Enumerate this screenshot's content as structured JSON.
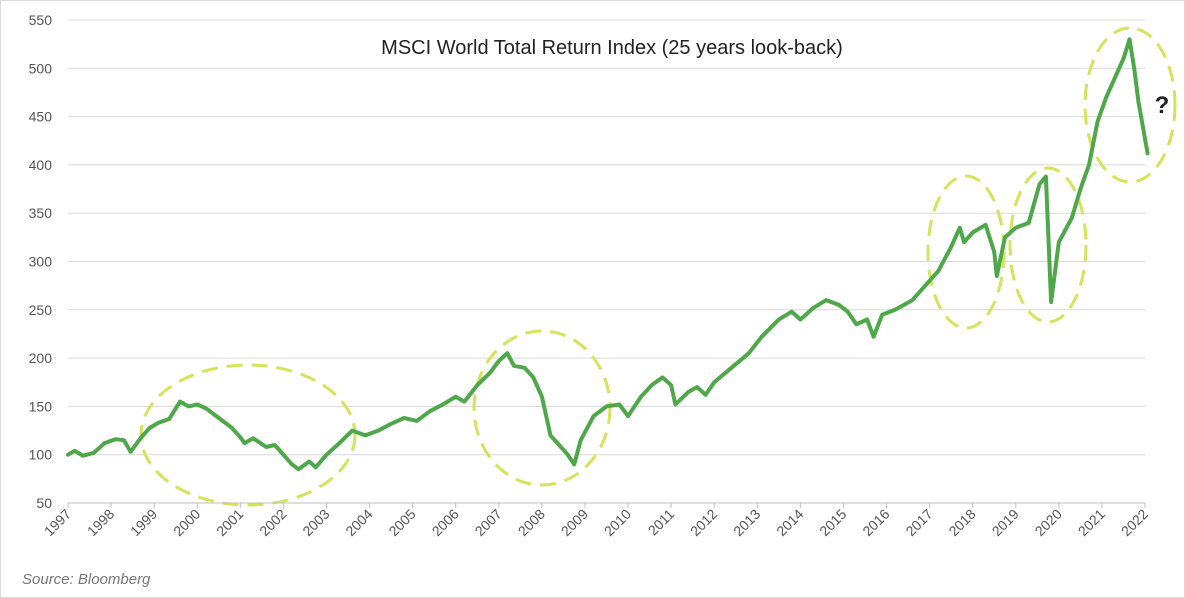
{
  "chart_data": {
    "type": "line",
    "title": "MSCI World Total Return Index (25 years look-back)",
    "source": "Source: Bloomberg",
    "annotation": "?",
    "xlim": [
      1997,
      2022
    ],
    "xticks": [
      1997,
      1998,
      1999,
      2000,
      2001,
      2002,
      2003,
      2004,
      2005,
      2006,
      2007,
      2008,
      2009,
      2010,
      2011,
      2012,
      2013,
      2014,
      2015,
      2016,
      2017,
      2018,
      2019,
      2020,
      2021,
      2022
    ],
    "ylim": [
      50,
      550
    ],
    "yticks": [
      50,
      100,
      150,
      200,
      250,
      300,
      350,
      400,
      450,
      500,
      550
    ],
    "grid": true,
    "series": [
      {
        "name": "MSCI World Total Return Index",
        "color": "#4ea84a",
        "x": [
          1997.0,
          1997.15,
          1997.35,
          1997.6,
          1997.85,
          1998.1,
          1998.3,
          1998.45,
          1998.7,
          1998.9,
          1999.1,
          1999.35,
          1999.6,
          1999.8,
          2000.0,
          2000.2,
          2000.5,
          2000.8,
          2001.0,
          2001.1,
          2001.3,
          2001.6,
          2001.8,
          2002.0,
          2002.2,
          2002.35,
          2002.6,
          2002.75,
          2003.0,
          2003.3,
          2003.6,
          2003.9,
          2004.2,
          2004.5,
          2004.8,
          2005.1,
          2005.4,
          2005.7,
          2006.0,
          2006.2,
          2006.5,
          2006.8,
          2007.0,
          2007.2,
          2007.35,
          2007.6,
          2007.8,
          2008.0,
          2008.2,
          2008.4,
          2008.6,
          2008.75,
          2008.9,
          2009.2,
          2009.5,
          2009.8,
          2010.0,
          2010.3,
          2010.55,
          2010.8,
          2011.0,
          2011.1,
          2011.4,
          2011.6,
          2011.8,
          2012.0,
          2012.4,
          2012.8,
          2013.1,
          2013.5,
          2013.8,
          2014.0,
          2014.3,
          2014.6,
          2014.9,
          2015.1,
          2015.3,
          2015.55,
          2015.7,
          2015.9,
          2016.2,
          2016.6,
          2016.9,
          2017.2,
          2017.5,
          2017.7,
          2017.8,
          2018.0,
          2018.3,
          2018.5,
          2018.56,
          2018.75,
          2019.0,
          2019.3,
          2019.55,
          2019.7,
          2019.82,
          2020.0,
          2020.3,
          2020.5,
          2020.7,
          2020.9,
          2021.1,
          2021.35,
          2021.5,
          2021.64,
          2021.75,
          2021.85,
          2021.95,
          2022.06
        ],
        "values": [
          100,
          104,
          99,
          102,
          112,
          116,
          115,
          103,
          118,
          128,
          133,
          137,
          155,
          150,
          152,
          148,
          138,
          128,
          118,
          112,
          117,
          108,
          110,
          100,
          90,
          85,
          93,
          87,
          100,
          112,
          125,
          120,
          125,
          132,
          138,
          135,
          145,
          152,
          160,
          155,
          172,
          185,
          197,
          205,
          192,
          190,
          180,
          160,
          120,
          110,
          100,
          90,
          115,
          140,
          150,
          152,
          140,
          160,
          172,
          180,
          172,
          152,
          165,
          170,
          162,
          175,
          190,
          205,
          222,
          240,
          248,
          240,
          252,
          260,
          255,
          248,
          235,
          240,
          222,
          245,
          250,
          260,
          275,
          290,
          315,
          335,
          320,
          330,
          338,
          310,
          285,
          325,
          335,
          340,
          380,
          388,
          258,
          320,
          345,
          375,
          400,
          445,
          470,
          495,
          510,
          530,
          500,
          465,
          440,
          412
        ]
      }
    ]
  }
}
